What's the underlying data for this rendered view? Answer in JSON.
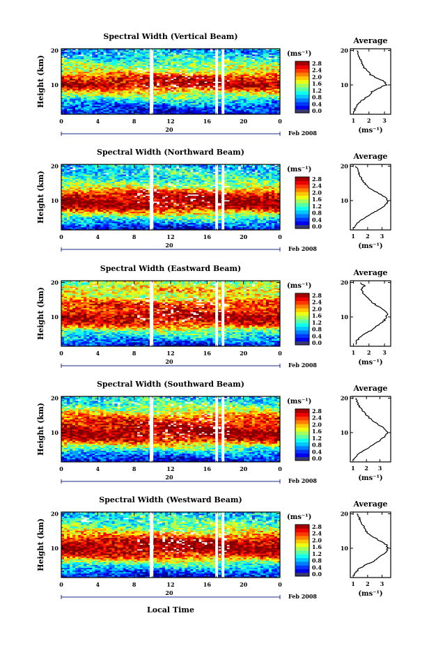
{
  "figure": {
    "date_label": "Feb 2008",
    "day_label": "20",
    "xlabel": "Local Time"
  },
  "chart_data": [
    {
      "type": "heatmap",
      "title": "Spectral Width (Vertical Beam)",
      "ylabel": "Height (km)",
      "xlabel": "",
      "x_ticks": [
        "0",
        "4",
        "8",
        "12",
        "16",
        "20",
        "0"
      ],
      "xlim": [
        0,
        24
      ],
      "y_ticks": [
        "10",
        "20"
      ],
      "ylim": [
        1.5,
        20.5
      ],
      "colorbar": {
        "unit": "(ms⁻¹)",
        "ticks": [
          "2.8",
          "2.4",
          "2.0",
          "1.6",
          "1.2",
          "0.8",
          "0.4",
          "0.0"
        ],
        "range": [
          0,
          2.8
        ]
      },
      "data_gaps_hours": [
        [
          9.7,
          10.1
        ],
        [
          16.9,
          17.2
        ],
        [
          17.6,
          17.9
        ]
      ],
      "z_profile_by_height": {
        "heights": [
          2,
          4,
          6,
          8,
          10,
          12,
          14,
          16,
          18,
          20
        ],
        "values": [
          0.3,
          0.6,
          1.2,
          1.8,
          2.7,
          2.5,
          1.7,
          1.4,
          1.1,
          0.8
        ]
      },
      "average_profile": {
        "title": "Average",
        "xlabel": "(ms⁻¹)",
        "x_ticks": [
          "1",
          "2",
          "3"
        ],
        "xlim": [
          0.8,
          3.4
        ],
        "y_ticks": [
          "10",
          "20"
        ],
        "ylim": [
          1.5,
          20.5
        ],
        "height": [
          2,
          3,
          4,
          5,
          6,
          7,
          8,
          9,
          10,
          11,
          12,
          13,
          14,
          15,
          16,
          17,
          18,
          19,
          20
        ],
        "value": [
          1.0,
          1.1,
          1.2,
          1.4,
          1.7,
          2.0,
          2.2,
          2.6,
          3.1,
          3.0,
          2.5,
          2.1,
          1.9,
          1.7,
          1.6,
          1.5,
          1.4,
          1.3,
          1.2
        ]
      }
    },
    {
      "type": "heatmap",
      "title": "Spectral Width (Northward Beam)",
      "ylabel": "Height (km)",
      "xlabel": "",
      "x_ticks": [
        "0",
        "4",
        "8",
        "12",
        "16",
        "20",
        "0"
      ],
      "xlim": [
        0,
        24
      ],
      "y_ticks": [
        "10",
        "20"
      ],
      "ylim": [
        1.5,
        20.5
      ],
      "colorbar": {
        "unit": "(ms⁻¹)",
        "ticks": [
          "2.8",
          "2.4",
          "2.0",
          "1.6",
          "1.2",
          "0.8",
          "0.4",
          "0.0"
        ],
        "range": [
          0,
          2.8
        ]
      },
      "data_gaps_hours": [
        [
          9.7,
          10.1
        ],
        [
          16.9,
          17.2
        ],
        [
          17.6,
          17.9
        ]
      ],
      "z_profile_by_height": {
        "heights": [
          2,
          4,
          6,
          8,
          10,
          12,
          14,
          16,
          18,
          20
        ],
        "values": [
          0.3,
          0.9,
          1.6,
          2.6,
          2.8,
          2.5,
          1.6,
          1.2,
          1.1,
          0.9
        ]
      },
      "average_profile": {
        "title": "Average",
        "xlabel": "(ms⁻¹)",
        "x_ticks": [
          "1",
          "2",
          "3"
        ],
        "xlim": [
          0.8,
          3.6
        ],
        "y_ticks": [
          "10",
          "20"
        ],
        "ylim": [
          1.5,
          20.5
        ],
        "height": [
          2,
          3,
          4,
          5,
          6,
          7,
          8,
          9,
          10,
          11,
          12,
          13,
          14,
          15,
          16,
          17,
          18,
          19,
          20
        ],
        "value": [
          1.0,
          1.2,
          1.4,
          1.8,
          2.2,
          2.6,
          3.0,
          3.3,
          3.4,
          3.2,
          2.8,
          2.4,
          2.0,
          1.8,
          1.6,
          1.5,
          1.4,
          1.3,
          1.2
        ]
      }
    },
    {
      "type": "heatmap",
      "title": "Spectral Width (Eastward Beam)",
      "ylabel": "Height (km)",
      "xlabel": "",
      "x_ticks": [
        "0",
        "4",
        "8",
        "12",
        "16",
        "20",
        "0"
      ],
      "xlim": [
        0,
        24
      ],
      "y_ticks": [
        "10",
        "20"
      ],
      "ylim": [
        1.5,
        20.5
      ],
      "colorbar": {
        "unit": "(ms⁻¹)",
        "ticks": [
          "2.8",
          "2.4",
          "2.0",
          "1.6",
          "1.2",
          "0.8",
          "0.4",
          "0.0"
        ],
        "range": [
          0,
          2.8
        ]
      },
      "data_gaps_hours": [
        [
          9.7,
          10.1
        ],
        [
          16.9,
          17.2
        ],
        [
          17.6,
          17.9
        ]
      ],
      "z_profile_by_height": {
        "heights": [
          2,
          4,
          6,
          8,
          10,
          12,
          14,
          16,
          18,
          20
        ],
        "values": [
          0.4,
          0.9,
          1.4,
          2.4,
          2.7,
          2.4,
          2.3,
          1.6,
          1.9,
          1.5
        ]
      },
      "average_profile": {
        "title": "Average",
        "xlabel": "(ms⁻¹)",
        "x_ticks": [
          "1",
          "2",
          "3"
        ],
        "xlim": [
          0.8,
          3.4
        ],
        "y_ticks": [
          "10",
          "20"
        ],
        "ylim": [
          1.5,
          20.5
        ],
        "height": [
          2,
          3,
          4,
          5,
          6,
          7,
          8,
          9,
          10,
          11,
          12,
          13,
          14,
          15,
          16,
          17,
          18,
          19,
          20
        ],
        "value": [
          1.1,
          1.2,
          1.4,
          1.7,
          2.1,
          2.4,
          2.7,
          3.0,
          3.1,
          3.2,
          3.0,
          2.6,
          2.3,
          2.0,
          1.8,
          1.6,
          1.5,
          1.7,
          1.4
        ]
      }
    },
    {
      "type": "heatmap",
      "title": "Spectral Width (Southward Beam)",
      "ylabel": "Height (km)",
      "xlabel": "",
      "x_ticks": [
        "0",
        "4",
        "8",
        "12",
        "16",
        "20",
        "0"
      ],
      "xlim": [
        0,
        24
      ],
      "y_ticks": [
        "10",
        "20"
      ],
      "ylim": [
        1.5,
        20.5
      ],
      "colorbar": {
        "unit": "(ms⁻¹)",
        "ticks": [
          "2.8",
          "2.4",
          "2.0",
          "1.6",
          "1.2",
          "0.8",
          "0.4",
          "0.0"
        ],
        "range": [
          0,
          2.8
        ]
      },
      "data_gaps_hours": [
        [
          9.7,
          10.1
        ],
        [
          16.9,
          17.2
        ],
        [
          17.6,
          17.9
        ]
      ],
      "z_profile_by_height": {
        "heights": [
          2,
          4,
          6,
          8,
          10,
          12,
          14,
          16,
          18,
          20
        ],
        "values": [
          0.3,
          0.8,
          1.5,
          2.5,
          2.8,
          2.6,
          2.3,
          1.7,
          1.3,
          1.0
        ]
      },
      "average_profile": {
        "title": "Average",
        "xlabel": "(ms⁻¹)",
        "x_ticks": [
          "1",
          "2",
          "3"
        ],
        "xlim": [
          0.8,
          3.8
        ],
        "y_ticks": [
          "10",
          "20"
        ],
        "ylim": [
          1.5,
          20.5
        ],
        "height": [
          2,
          3,
          4,
          5,
          6,
          7,
          8,
          9,
          10,
          11,
          12,
          13,
          14,
          15,
          16,
          17,
          18,
          19,
          20
        ],
        "value": [
          1.0,
          1.2,
          1.5,
          1.9,
          2.3,
          2.7,
          3.1,
          3.4,
          3.6,
          3.4,
          3.0,
          2.6,
          2.3,
          2.0,
          1.8,
          1.6,
          1.4,
          1.3,
          1.2
        ]
      }
    },
    {
      "type": "heatmap",
      "title": "Spectral Width (Westward Beam)",
      "ylabel": "Height (km)",
      "xlabel": "",
      "x_ticks": [
        "0",
        "4",
        "8",
        "12",
        "16",
        "20",
        "0"
      ],
      "xlim": [
        0,
        24
      ],
      "y_ticks": [
        "10",
        "20"
      ],
      "ylim": [
        1.5,
        20.5
      ],
      "colorbar": {
        "unit": "(ms⁻¹)",
        "ticks": [
          "2.8",
          "2.4",
          "2.0",
          "1.6",
          "1.2",
          "0.8",
          "0.4",
          "0.0"
        ],
        "range": [
          0,
          2.8
        ]
      },
      "data_gaps_hours": [
        [
          9.7,
          10.1
        ],
        [
          16.9,
          17.2
        ],
        [
          17.6,
          17.9
        ]
      ],
      "z_profile_by_height": {
        "heights": [
          2,
          4,
          6,
          8,
          10,
          12,
          14,
          16,
          18,
          20
        ],
        "values": [
          0.3,
          0.8,
          1.5,
          2.4,
          2.8,
          2.7,
          2.0,
          1.4,
          1.2,
          1.0
        ]
      },
      "average_profile": {
        "title": "Average",
        "xlabel": "(ms⁻¹)",
        "x_ticks": [
          "1",
          "2",
          "3"
        ],
        "xlim": [
          0.8,
          3.6
        ],
        "y_ticks": [
          "10",
          "20"
        ],
        "ylim": [
          1.5,
          20.5
        ],
        "height": [
          2,
          3,
          4,
          5,
          6,
          7,
          8,
          9,
          10,
          11,
          12,
          13,
          14,
          15,
          16,
          17,
          18,
          19,
          20
        ],
        "value": [
          1.0,
          1.2,
          1.4,
          1.8,
          2.3,
          2.7,
          3.0,
          3.3,
          3.4,
          3.3,
          2.9,
          2.5,
          2.1,
          1.9,
          1.8,
          1.6,
          1.5,
          1.4,
          1.3
        ]
      }
    }
  ]
}
